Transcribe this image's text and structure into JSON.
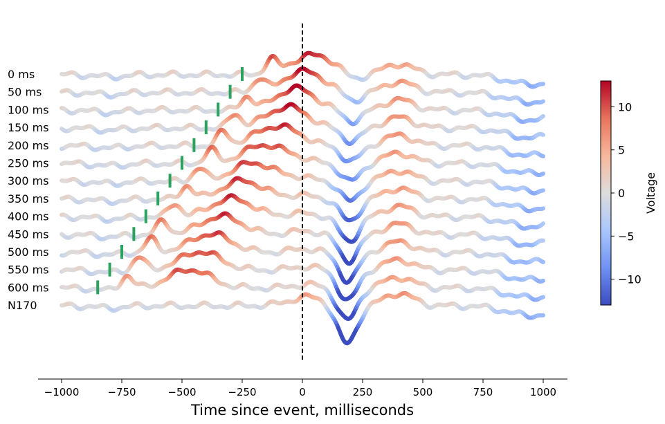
{
  "chart_data": {
    "type": "line",
    "title": "",
    "xlabel": "Time since event, milliseconds",
    "ylabel": "",
    "xlim": [
      -1100,
      1100
    ],
    "x_ticks": [
      -1000,
      -750,
      -500,
      -250,
      0,
      250,
      500,
      750,
      1000
    ],
    "x_tick_labels": [
      "−1000",
      "−750",
      "−500",
      "−250",
      "0",
      "250",
      "500",
      "750",
      "1000"
    ],
    "event_marker": {
      "x": 0,
      "style": "dashed",
      "color": "#000000"
    },
    "onset_marker_color": "#2ca25f",
    "grid": false,
    "legend": "none",
    "colormap": "coolwarm",
    "colorbar": {
      "label": "Voltage",
      "range": [
        -13,
        13
      ],
      "ticks": [
        -10,
        -5,
        0,
        5,
        10
      ],
      "tick_labels": [
        "−10",
        "−5",
        "0",
        "5",
        "10"
      ],
      "colors": [
        "#3b4cc0",
        "#6f92f3",
        "#aac7fd",
        "#dddcdc",
        "#f7b89c",
        "#e7745b",
        "#b40426"
      ]
    },
    "series": [
      {
        "name": "0 ms",
        "onset": -250
      },
      {
        "name": "50 ms",
        "onset": -300
      },
      {
        "name": "100 ms",
        "onset": -350
      },
      {
        "name": "150 ms",
        "onset": -400
      },
      {
        "name": "200 ms",
        "onset": -450
      },
      {
        "name": "250 ms",
        "onset": -500
      },
      {
        "name": "300 ms",
        "onset": -550
      },
      {
        "name": "350 ms",
        "onset": -600
      },
      {
        "name": "400 ms",
        "onset": -650
      },
      {
        "name": "450 ms",
        "onset": -700
      },
      {
        "name": "500 ms",
        "onset": -750
      },
      {
        "name": "550 ms",
        "onset": -800
      },
      {
        "name": "600 ms",
        "onset": -850
      },
      {
        "name": "N170",
        "onset": null
      }
    ]
  }
}
